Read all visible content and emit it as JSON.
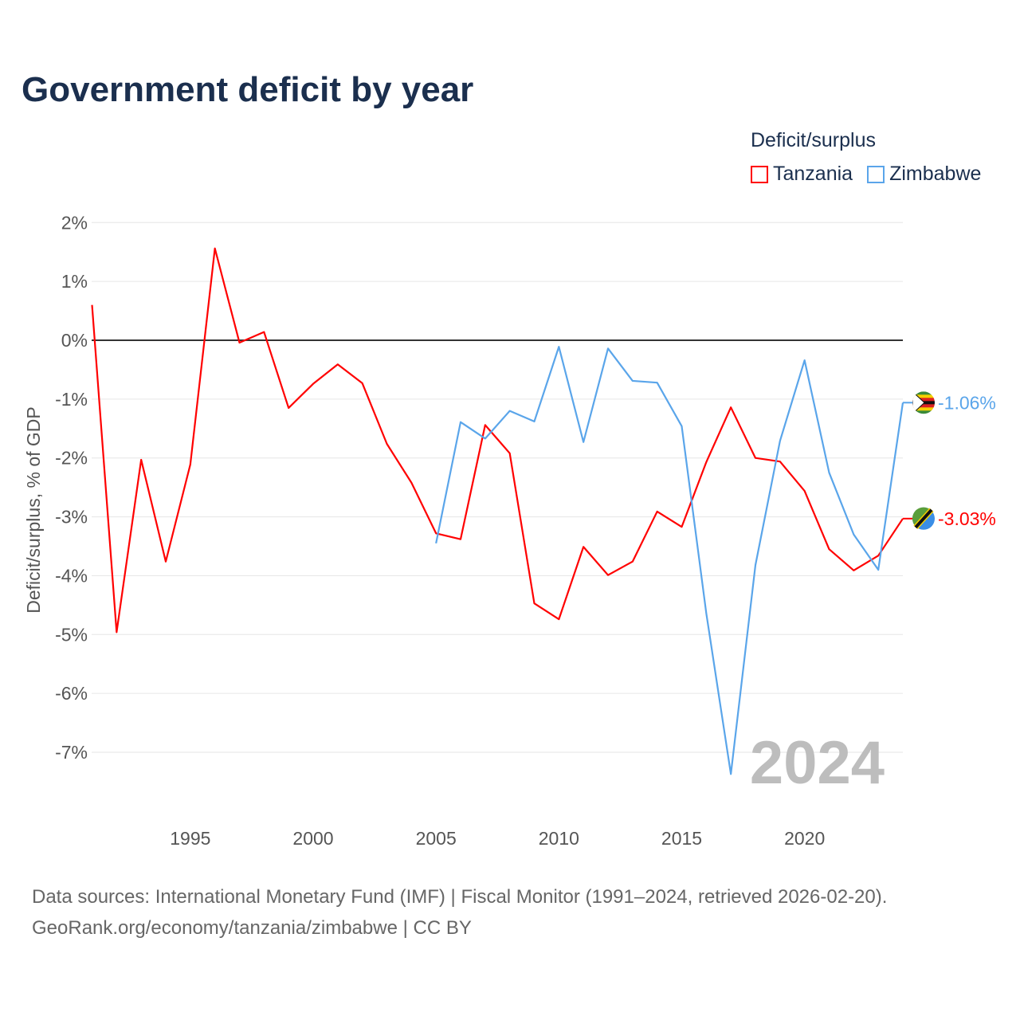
{
  "title": "Government deficit by year",
  "legend": {
    "title": "Deficit/surplus",
    "items": [
      {
        "label": "Tanzania",
        "color": "#ff0000"
      },
      {
        "label": "Zimbabwe",
        "color": "#5aa5ea"
      }
    ]
  },
  "year_watermark": "2024",
  "source": {
    "line1": "Data sources: International Monetary Fund (IMF) | Fiscal Monitor (1991–2024, retrieved 2026-02-20).",
    "line2": "GeoRank.org/economy/tanzania/zimbabwe | CC BY"
  },
  "chart_data": {
    "type": "line",
    "title": "Government deficit by year",
    "xlabel": "",
    "ylabel": "Deficit/surplus, % of GDP",
    "xlim": [
      1991,
      2024
    ],
    "ylim": [
      -8.0,
      2.0
    ],
    "yticks": [
      2,
      1,
      0,
      -1,
      -2,
      -3,
      -4,
      -5,
      -6,
      -7
    ],
    "ytick_labels": [
      "2%",
      "1%",
      "0%",
      "-1%",
      "-2%",
      "-3%",
      "-4%",
      "-5%",
      "-6%",
      "-7%"
    ],
    "xticks": [
      1995,
      2000,
      2005,
      2010,
      2015,
      2020
    ],
    "xtick_labels": [
      "1995",
      "2000",
      "2005",
      "2010",
      "2015",
      "2020"
    ],
    "grid": true,
    "legend_position": "top-right",
    "series": [
      {
        "name": "Tanzania",
        "color": "#ff0000",
        "end_label": "-3.03%",
        "x": [
          1991,
          1992,
          1993,
          1994,
          1995,
          1996,
          1997,
          1998,
          1999,
          2000,
          2001,
          2002,
          2003,
          2004,
          2005,
          2006,
          2007,
          2008,
          2009,
          2010,
          2011,
          2012,
          2013,
          2014,
          2015,
          2016,
          2017,
          2018,
          2019,
          2020,
          2021,
          2022,
          2023,
          2024
        ],
        "values": [
          0.6,
          -4.96,
          -2.03,
          -3.76,
          -2.11,
          1.56,
          -0.04,
          0.14,
          -1.15,
          -0.74,
          -0.41,
          -0.73,
          -1.76,
          -2.42,
          -3.28,
          -3.38,
          -1.44,
          -1.92,
          -4.47,
          -4.74,
          -3.51,
          -3.99,
          -3.76,
          -2.91,
          -3.17,
          -2.07,
          -1.14,
          -2.0,
          -2.06,
          -2.56,
          -3.55,
          -3.91,
          -3.66,
          -3.03
        ]
      },
      {
        "name": "Zimbabwe",
        "color": "#5aa5ea",
        "end_label": "-1.06%",
        "x": [
          2005,
          2006,
          2007,
          2008,
          2009,
          2010,
          2011,
          2012,
          2013,
          2014,
          2015,
          2016,
          2017,
          2018,
          2019,
          2020,
          2021,
          2022,
          2023,
          2024
        ],
        "values": [
          -3.45,
          -1.39,
          -1.67,
          -1.2,
          -1.38,
          -0.11,
          -1.73,
          -0.14,
          -0.69,
          -0.72,
          -1.46,
          -4.64,
          -7.37,
          -3.82,
          -1.71,
          -0.34,
          -2.25,
          -3.3,
          -3.9,
          -1.06
        ]
      }
    ]
  }
}
